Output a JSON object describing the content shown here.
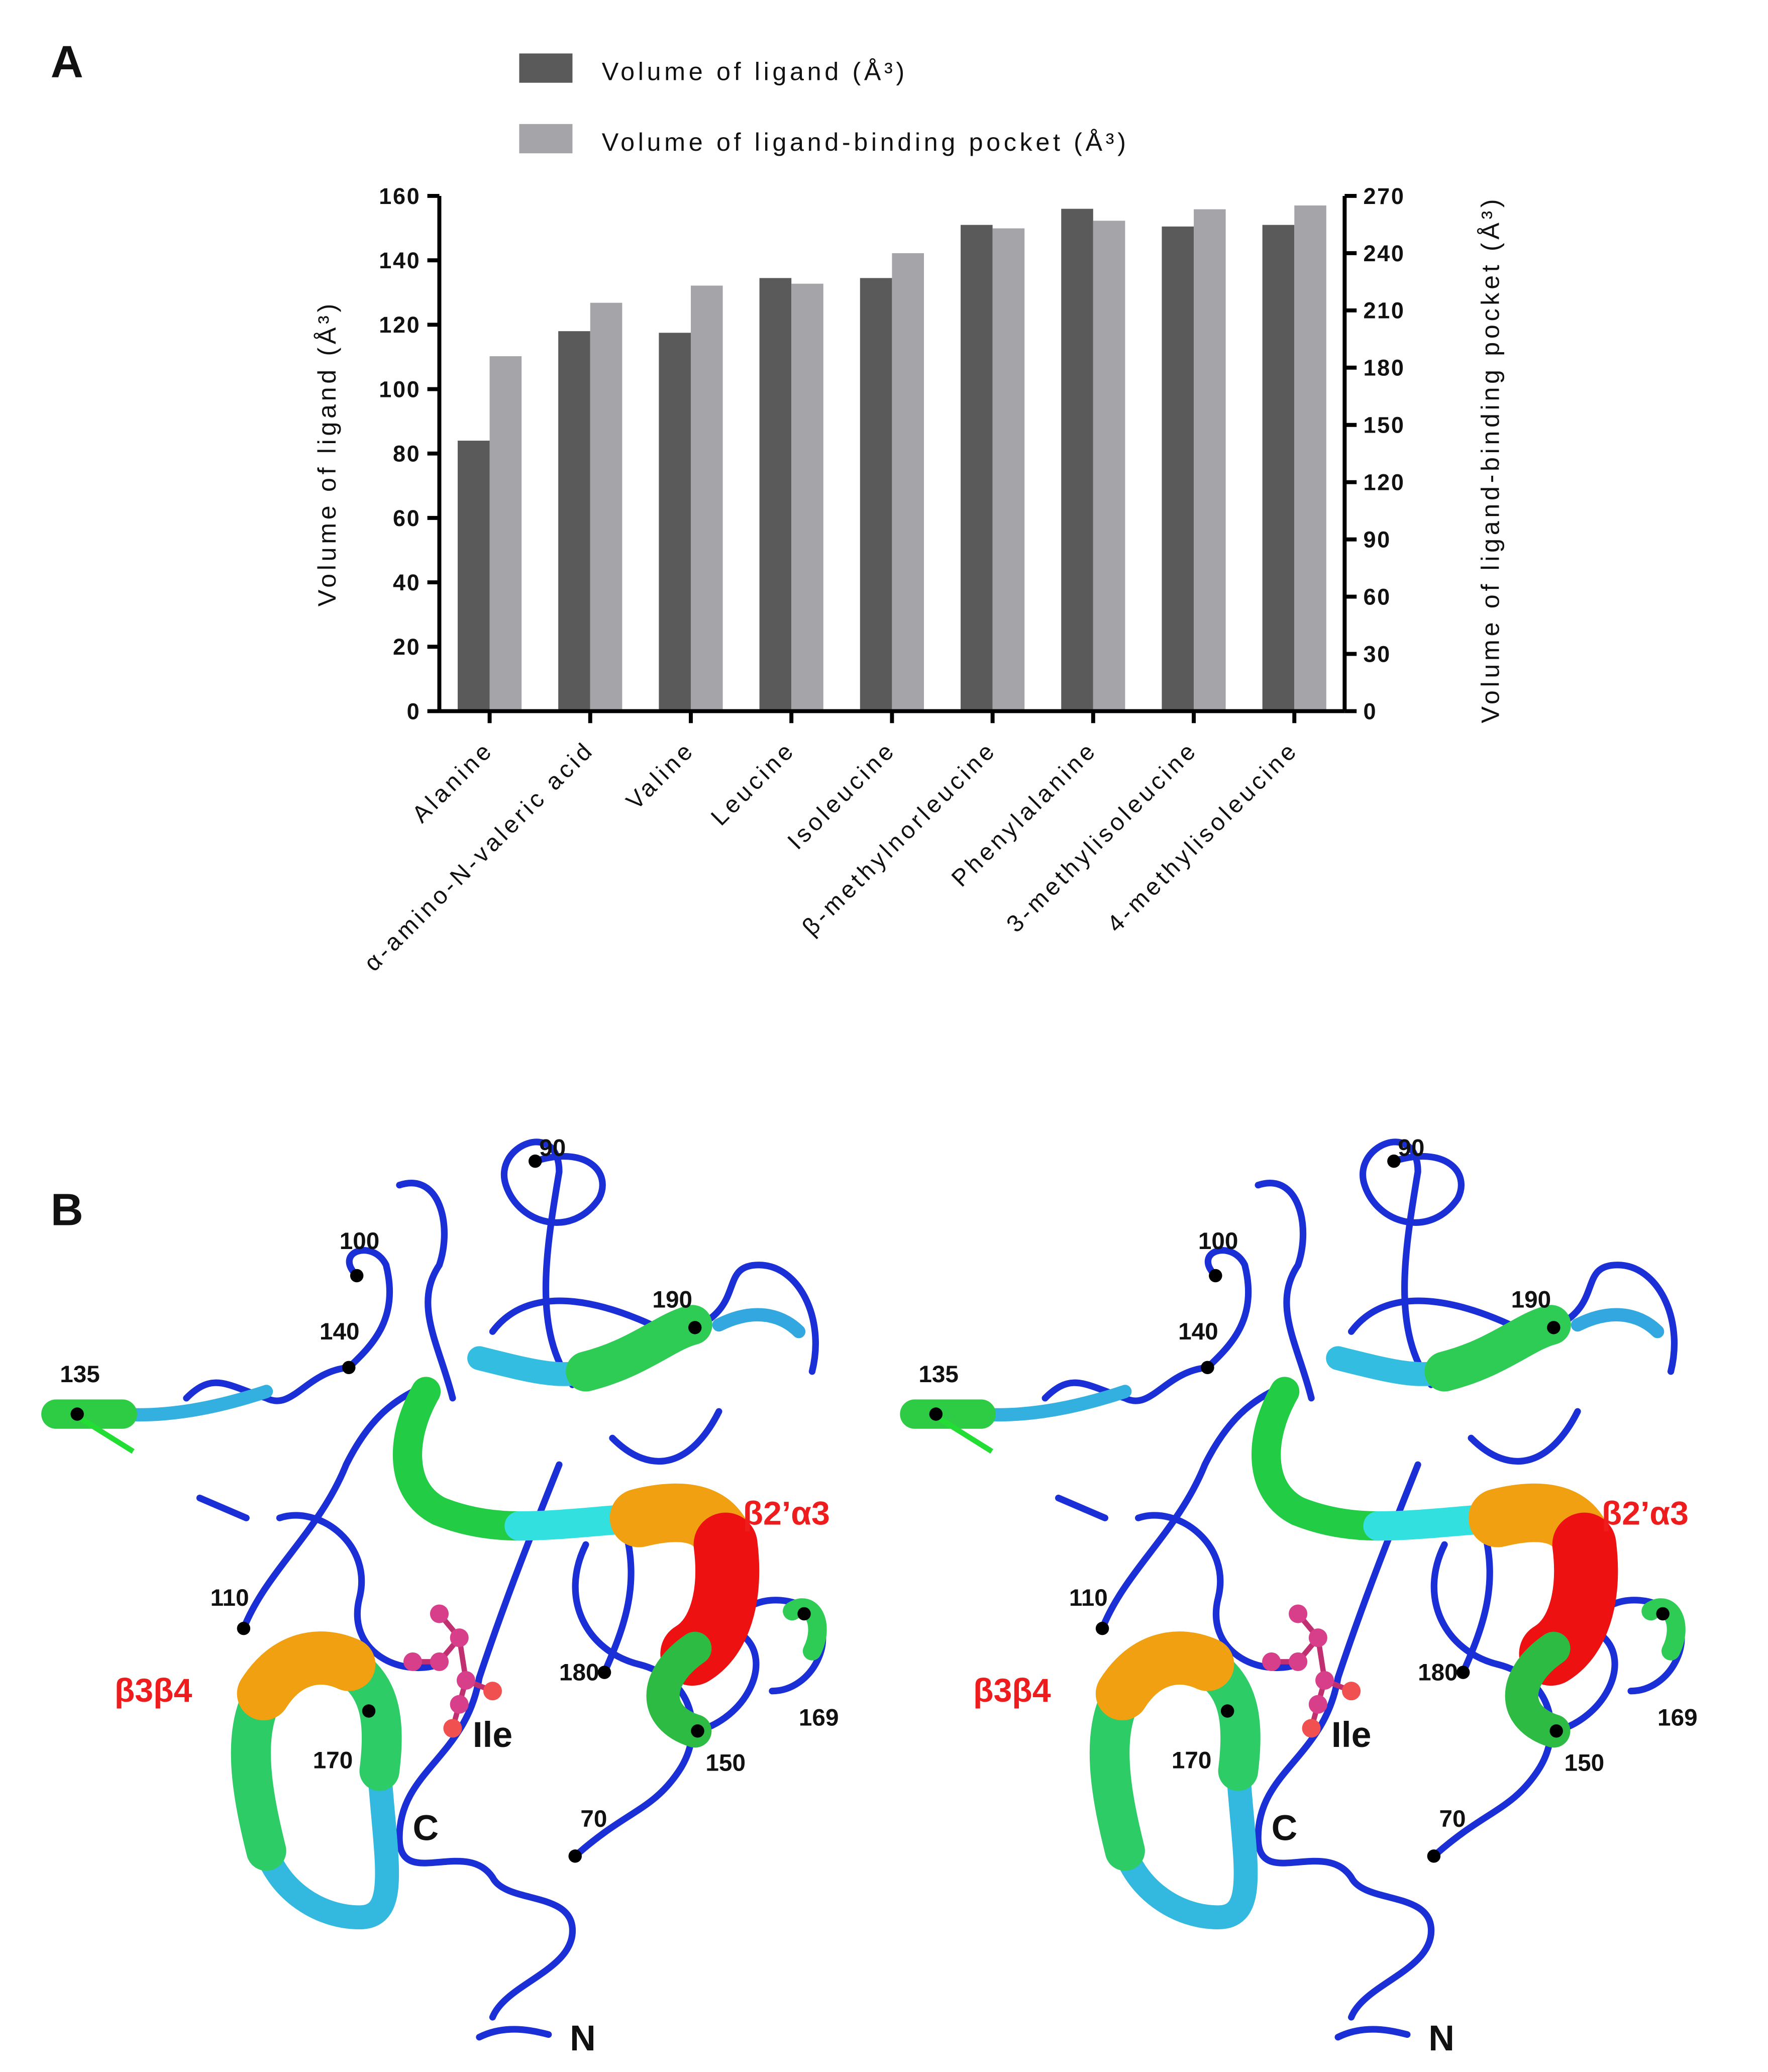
{
  "chart_data": {
    "type": "bar",
    "panel_label": "A",
    "categories": [
      "Alanine",
      "α-amino-N-valeric acid",
      "Valine",
      "Leucine",
      "Isoleucine",
      "β-methylnorleucine",
      "Phenylalanine",
      "3-methylisoleucine",
      "4-methylisoleucine"
    ],
    "series": [
      {
        "name": "Volume of ligand (Å³)",
        "color": "#5a5a5a",
        "values": [
          84,
          118,
          117.5,
          134.5,
          134.5,
          151,
          156,
          150.5,
          151
        ]
      },
      {
        "name": "Volume of ligand-binding pocket (Å³)",
        "color": "#a5a5a9",
        "axis": "y2",
        "values": [
          186,
          214,
          223,
          224,
          240,
          253,
          257,
          263,
          265
        ]
      }
    ],
    "y_label": "Volume of ligand (Å³)",
    "y2_label": "Volume of ligand-binding pocket (Å³)",
    "ylim": [
      0,
      160
    ],
    "yticks": [
      0,
      20,
      40,
      60,
      80,
      100,
      120,
      140,
      160
    ],
    "y2lim": [
      0,
      270
    ],
    "y2ticks": [
      0,
      30,
      60,
      90,
      120,
      150,
      180,
      210,
      240,
      270
    ]
  },
  "panel_b": {
    "panel_label": "B",
    "labels": [
      "90",
      "100",
      "190",
      "140",
      "135",
      "β2’α3",
      "110",
      "β3β4",
      "180",
      "169",
      "170",
      "Ile",
      "150",
      "C",
      "70",
      "N"
    ]
  }
}
